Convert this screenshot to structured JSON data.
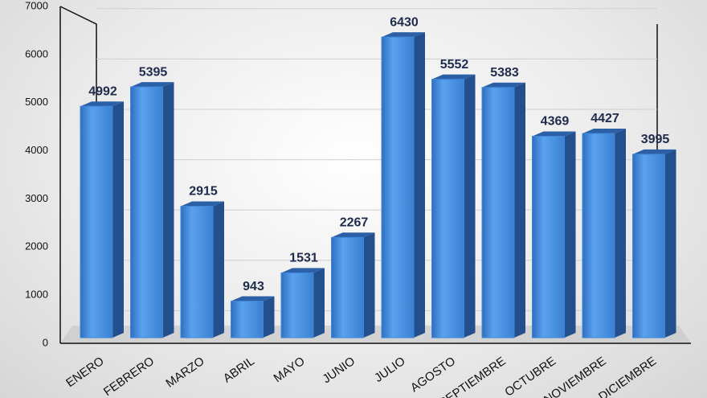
{
  "chart_data": {
    "type": "bar3d",
    "categories": [
      "ENERO",
      "FEBRERO",
      "MARZO",
      "ABRIL",
      "MAYO",
      "JUNIO",
      "JULIO",
      "AGOSTO",
      "SEPTIEMBRE",
      "OCTUBRE",
      "NOVIEMBRE",
      "DICIEMBRE"
    ],
    "values": [
      4992,
      5395,
      2915,
      943,
      1531,
      2267,
      6430,
      5552,
      5383,
      4369,
      4427,
      3995
    ],
    "color": "#3f88da",
    "ylim": [
      0,
      7000
    ],
    "yticks": [
      0,
      1000,
      2000,
      3000,
      4000,
      5000,
      6000,
      7000
    ],
    "grid": true
  }
}
